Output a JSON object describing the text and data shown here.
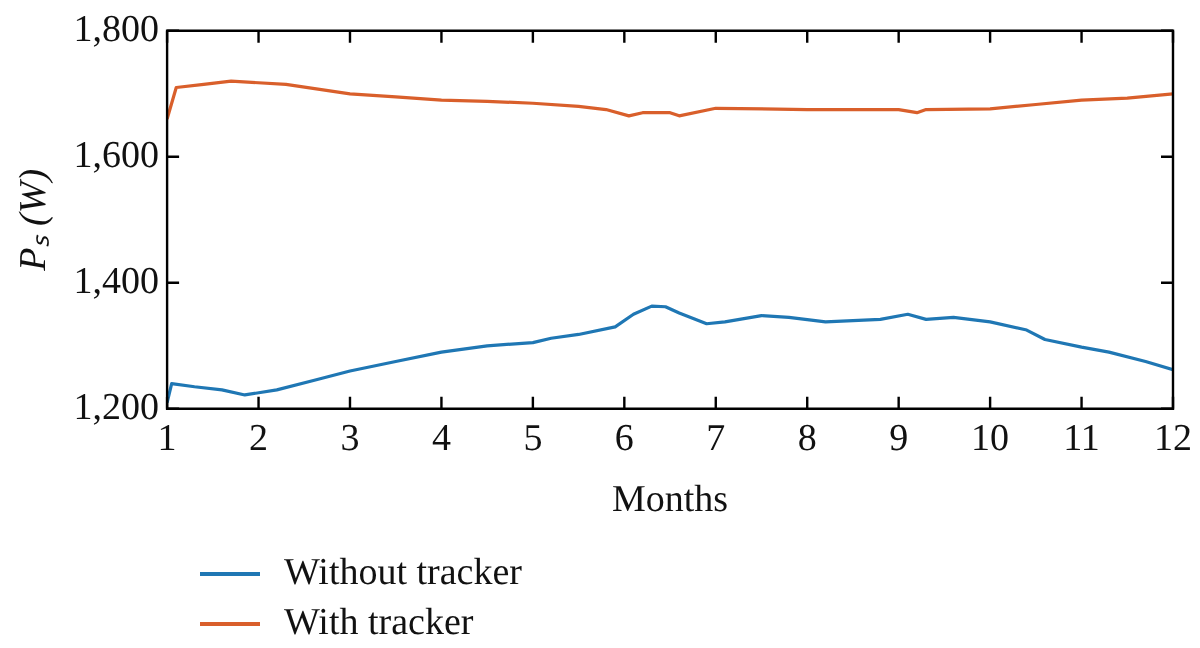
{
  "chart_data": {
    "type": "line",
    "xlabel": "Months",
    "ylabel": "Pₛ (W)",
    "xlim": [
      1,
      12
    ],
    "xticks": [
      1,
      2,
      3,
      4,
      5,
      6,
      7,
      8,
      9,
      10,
      11,
      12
    ],
    "ylim": [
      1200,
      1800
    ],
    "yticks": [
      {
        "value": 1200,
        "label": "1,200"
      },
      {
        "value": 1400,
        "label": "1,400"
      },
      {
        "value": 1600,
        "label": "1,600"
      },
      {
        "value": 1800,
        "label": "1,800"
      }
    ],
    "grid": false,
    "legend": "bottom",
    "marker": "none",
    "line_style": "solid",
    "series": [
      {
        "name": "Without tracker",
        "color": "#1f77b4",
        "x": [
          1,
          1.05,
          1.3,
          1.6,
          1.85,
          2.2,
          2.6,
          3,
          3.5,
          4,
          4.5,
          5,
          5.2,
          5.5,
          5.9,
          6.1,
          6.3,
          6.45,
          6.6,
          6.9,
          7.1,
          7.5,
          7.8,
          8.2,
          8.8,
          9.1,
          9.3,
          9.6,
          10,
          10.4,
          10.6,
          11,
          11.3,
          11.7,
          12
        ],
        "values": [
          1210,
          1240,
          1235,
          1230,
          1222,
          1230,
          1245,
          1260,
          1275,
          1290,
          1300,
          1305,
          1312,
          1318,
          1330,
          1350,
          1363,
          1362,
          1352,
          1335,
          1338,
          1348,
          1345,
          1338,
          1342,
          1350,
          1342,
          1345,
          1338,
          1325,
          1310,
          1298,
          1290,
          1275,
          1262
        ]
      },
      {
        "name": "With tracker",
        "color": "#d95f2b",
        "x": [
          1,
          1.1,
          1.4,
          1.7,
          2.3,
          3,
          3.5,
          4,
          4.5,
          5,
          5.5,
          5.8,
          6.05,
          6.2,
          6.5,
          6.6,
          7,
          8,
          9,
          9.2,
          9.3,
          10,
          10.5,
          11,
          11.5,
          12
        ],
        "values": [
          1660,
          1710,
          1715,
          1720,
          1715,
          1700,
          1695,
          1690,
          1688,
          1685,
          1680,
          1675,
          1665,
          1670,
          1670,
          1665,
          1677,
          1675,
          1675,
          1670,
          1675,
          1676,
          1683,
          1690,
          1693,
          1700
        ]
      }
    ]
  }
}
